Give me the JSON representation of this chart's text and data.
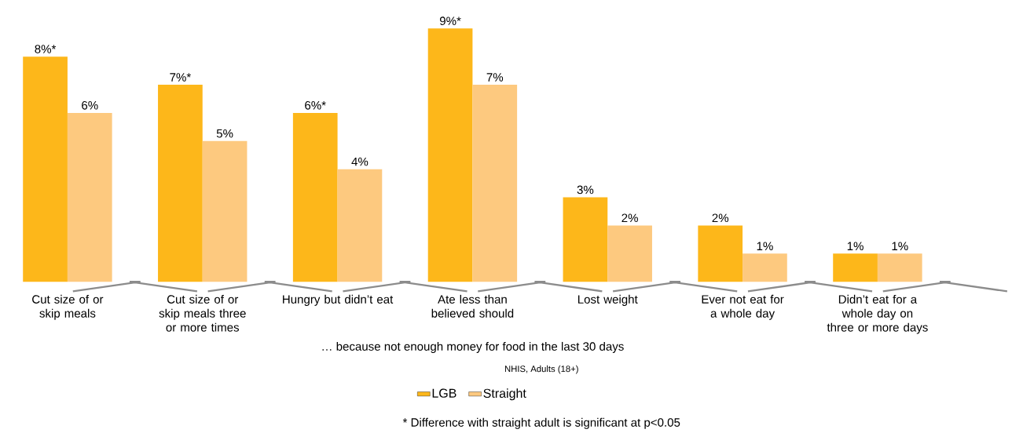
{
  "chart_data": {
    "type": "bar",
    "categories": [
      "Cut size of or skip meals",
      "Cut size of or skip meals three or more times",
      "Hungry but didn’t eat",
      "Ate less than believed should",
      "Lost weight",
      "Ever not eat for a whole day",
      "Didn’t eat for a whole day on three or more days"
    ],
    "xlabel": "… because not enough money for food in the last 30 days",
    "series": [
      {
        "name": "LGB",
        "color": "#fdb71a",
        "values": [
          8,
          7,
          6,
          9,
          3,
          2,
          1
        ],
        "value_labels": [
          "8%*",
          "7%*",
          "6%*",
          "9%*",
          "3%",
          "2%",
          "1%"
        ]
      },
      {
        "name": "Straight",
        "color": "#fdc97f",
        "values": [
          6,
          5,
          4,
          7,
          2,
          1,
          1
        ],
        "value_labels": [
          "6%",
          "5%",
          "4%",
          "7%",
          "2%",
          "1%",
          "1%"
        ]
      }
    ],
    "legend": "bottom",
    "annotations": [
      "NHIS, Adults (18+)",
      "* Difference with straight adult is significant at p<0.05"
    ]
  }
}
